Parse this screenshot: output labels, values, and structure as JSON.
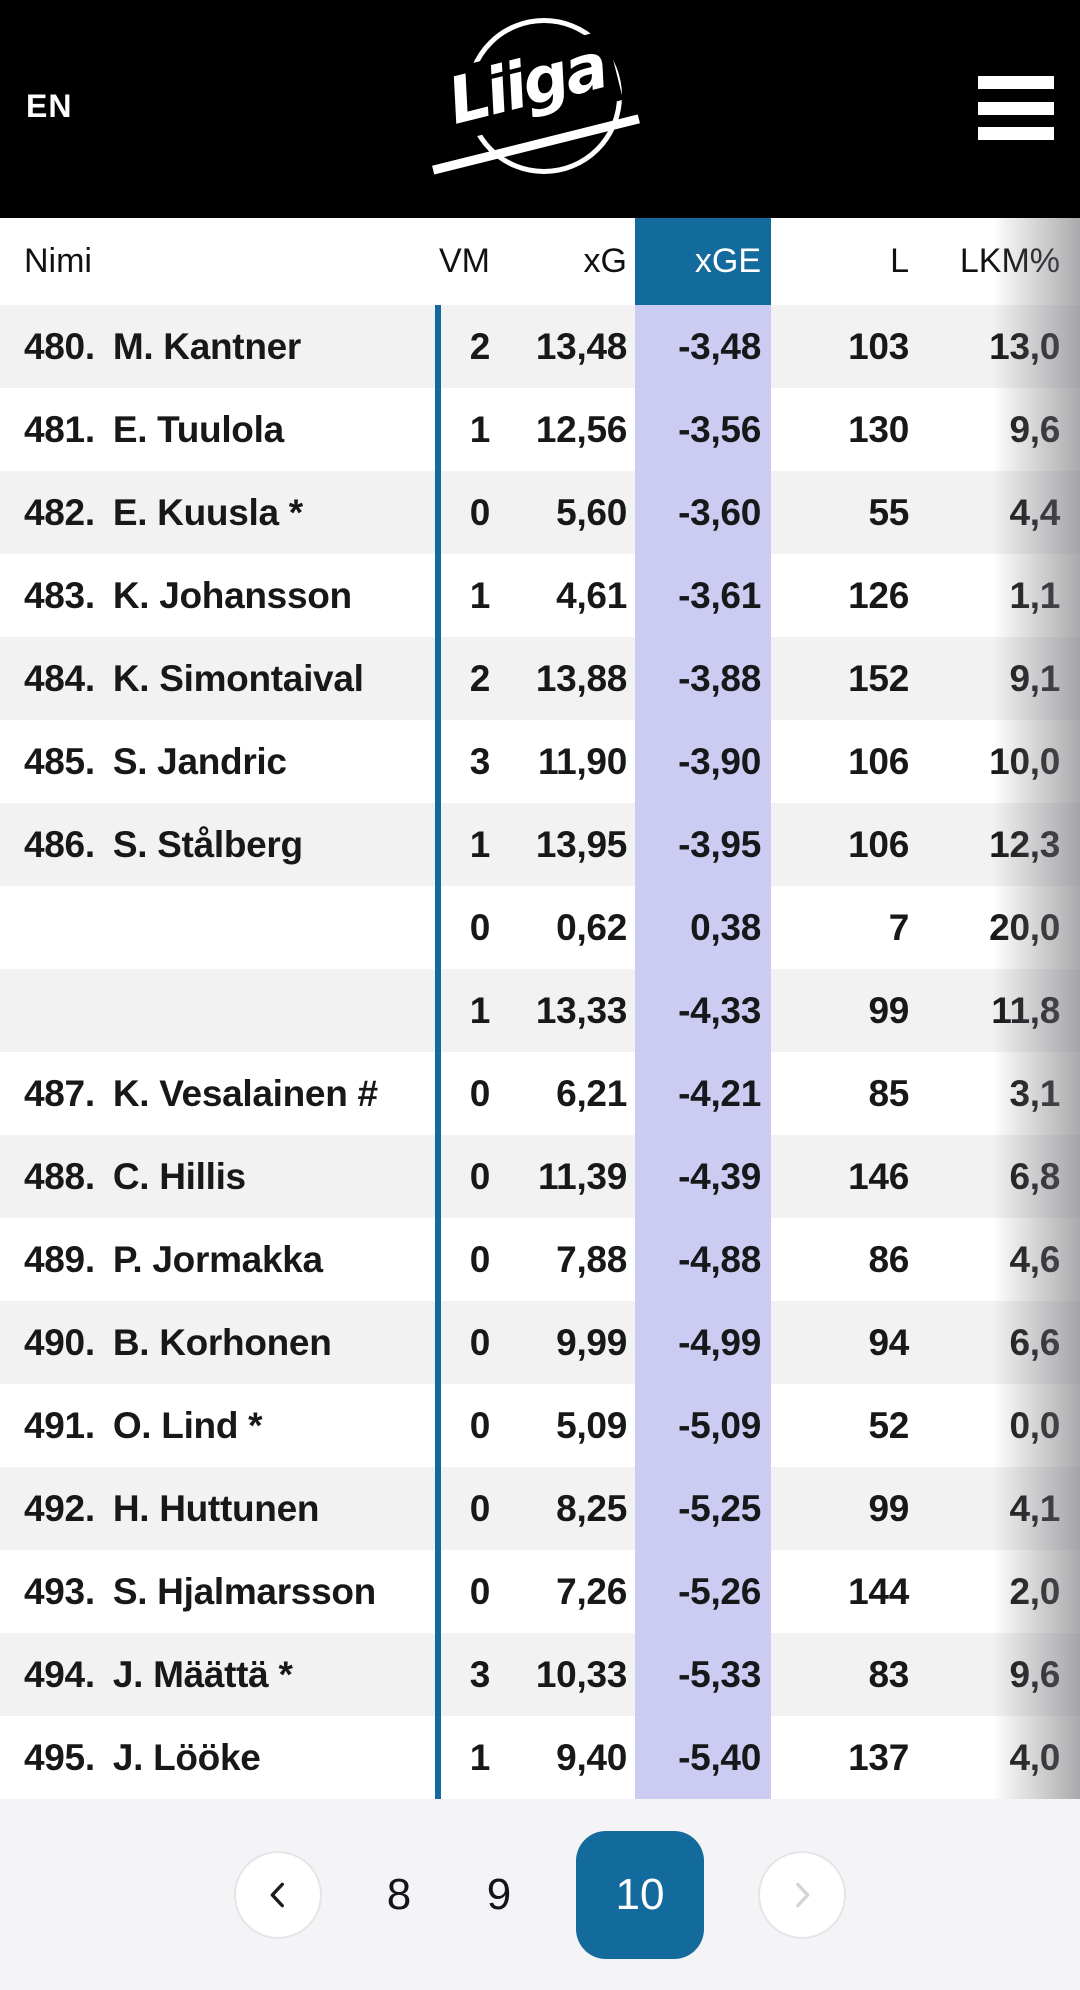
{
  "app_header": {
    "language": "EN",
    "logo_text": "Liiga",
    "menu_icon": "hamburger-icon"
  },
  "table": {
    "columns": [
      {
        "key": "name",
        "label": "Nimi"
      },
      {
        "key": "vm",
        "label": "VM"
      },
      {
        "key": "xg",
        "label": "xG"
      },
      {
        "key": "xge",
        "label": "xGE",
        "highlighted": true
      },
      {
        "key": "l",
        "label": "L"
      },
      {
        "key": "lkm",
        "label": "LKM%"
      }
    ],
    "rows": [
      {
        "rank": "480.",
        "name": "M. Kantner",
        "vm": "2",
        "xg": "13,48",
        "xge": "-3,48",
        "l": "103",
        "lkm": "13,0"
      },
      {
        "rank": "481.",
        "name": "E. Tuulola",
        "vm": "1",
        "xg": "12,56",
        "xge": "-3,56",
        "l": "130",
        "lkm": "9,6"
      },
      {
        "rank": "482.",
        "name": "E. Kuusla *",
        "vm": "0",
        "xg": "5,60",
        "xge": "-3,60",
        "l": "55",
        "lkm": "4,4"
      },
      {
        "rank": "483.",
        "name": "K. Johansson",
        "vm": "1",
        "xg": "4,61",
        "xge": "-3,61",
        "l": "126",
        "lkm": "1,1"
      },
      {
        "rank": "484.",
        "name": "K. Simontaival",
        "vm": "2",
        "xg": "13,88",
        "xge": "-3,88",
        "l": "152",
        "lkm": "9,1"
      },
      {
        "rank": "485.",
        "name": "S. Jandric",
        "vm": "3",
        "xg": "11,90",
        "xge": "-3,90",
        "l": "106",
        "lkm": "10,0"
      },
      {
        "rank": "486.",
        "name": "S. Stålberg",
        "vm": "1",
        "xg": "13,95",
        "xge": "-3,95",
        "l": "106",
        "lkm": "12,3"
      },
      {
        "rank": "",
        "name": "",
        "vm": "0",
        "xg": "0,62",
        "xge": "0,38",
        "l": "7",
        "lkm": "20,0"
      },
      {
        "rank": "",
        "name": "",
        "vm": "1",
        "xg": "13,33",
        "xge": "-4,33",
        "l": "99",
        "lkm": "11,8"
      },
      {
        "rank": "487.",
        "name": "K. Vesalainen #",
        "vm": "0",
        "xg": "6,21",
        "xge": "-4,21",
        "l": "85",
        "lkm": "3,1"
      },
      {
        "rank": "488.",
        "name": "C. Hillis",
        "vm": "0",
        "xg": "11,39",
        "xge": "-4,39",
        "l": "146",
        "lkm": "6,8"
      },
      {
        "rank": "489.",
        "name": "P. Jormakka",
        "vm": "0",
        "xg": "7,88",
        "xge": "-4,88",
        "l": "86",
        "lkm": "4,6"
      },
      {
        "rank": "490.",
        "name": "B. Korhonen",
        "vm": "0",
        "xg": "9,99",
        "xge": "-4,99",
        "l": "94",
        "lkm": "6,6"
      },
      {
        "rank": "491.",
        "name": "O. Lind *",
        "vm": "0",
        "xg": "5,09",
        "xge": "-5,09",
        "l": "52",
        "lkm": "0,0"
      },
      {
        "rank": "492.",
        "name": "H. Huttunen",
        "vm": "0",
        "xg": "8,25",
        "xge": "-5,25",
        "l": "99",
        "lkm": "4,1"
      },
      {
        "rank": "493.",
        "name": "S. Hjalmarsson",
        "vm": "0",
        "xg": "7,26",
        "xge": "-5,26",
        "l": "144",
        "lkm": "2,0"
      },
      {
        "rank": "494.",
        "name": "J. Määttä *",
        "vm": "3",
        "xg": "10,33",
        "xge": "-5,33",
        "l": "83",
        "lkm": "9,6"
      },
      {
        "rank": "495.",
        "name": "J. Lööke",
        "vm": "1",
        "xg": "9,40",
        "xge": "-5,40",
        "l": "137",
        "lkm": "4,0"
      }
    ]
  },
  "pagination": {
    "prev_icon": "chevron-left-icon",
    "pages": [
      "8",
      "9",
      "10"
    ],
    "active_page": "10",
    "next_icon": "chevron-right-icon",
    "next_disabled": true
  },
  "colors": {
    "accent_blue": "#136a9c",
    "highlight_column": "#cccbf2",
    "row_stripe": "#f2f2f3",
    "footer_background": "#f4f4f6",
    "header_background": "#000000"
  }
}
